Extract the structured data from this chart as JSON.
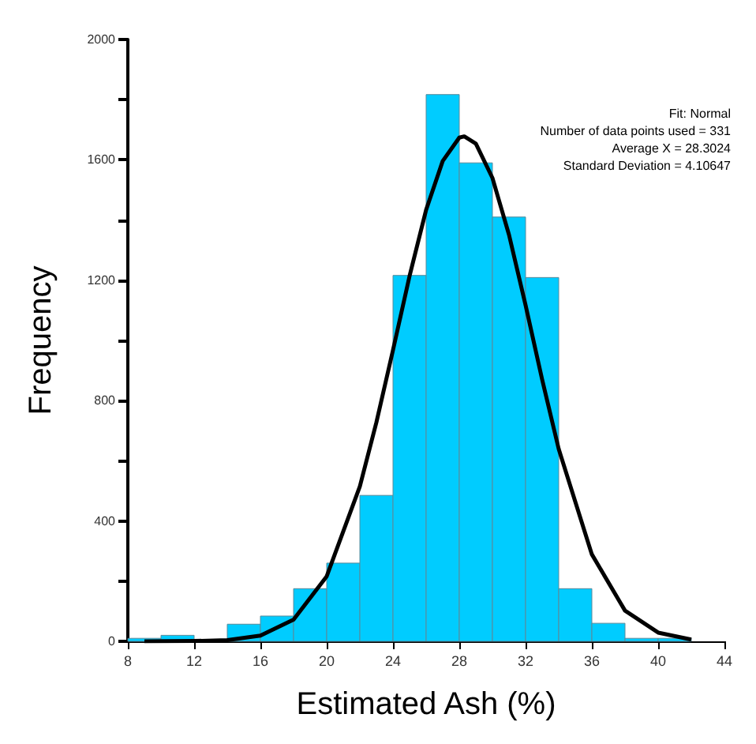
{
  "chart_data": {
    "type": "histogram",
    "xlabel": "Estimated Ash (%)",
    "ylabel": "Frequency",
    "bins": [
      8,
      10,
      12,
      14,
      16,
      18,
      20,
      22,
      24,
      26,
      28,
      30,
      32,
      34,
      36,
      38,
      40,
      42
    ],
    "values": [
      10,
      20,
      0,
      57,
      84,
      175,
      260,
      485,
      1216,
      1817,
      1590,
      1410,
      1209,
      175,
      60,
      10,
      10
    ],
    "color": "#00ccff",
    "series": [
      {
        "type": "line",
        "color": "#000000",
        "x": [
          9,
          12,
          14,
          16,
          18,
          20,
          22,
          23,
          24,
          25,
          26,
          27,
          28,
          28.3,
          29,
          30,
          31,
          32,
          33,
          34,
          36,
          38,
          40,
          42
        ],
        "values": [
          0,
          1,
          4,
          19,
          72,
          216,
          515,
          728,
          968,
          1214,
          1434,
          1596,
          1674,
          1678,
          1654,
          1540,
          1351,
          1117,
          870,
          639,
          289,
          102,
          29,
          6
        ]
      }
    ],
    "xlim": [
      8,
      44
    ],
    "xticks": [
      8,
      12,
      16,
      20,
      24,
      28,
      32,
      36,
      40,
      44
    ],
    "ylim": [
      0,
      2000
    ],
    "yticks": [
      0,
      {
        "value": 200,
        "label": null
      },
      400,
      {
        "value": 600,
        "label": null
      },
      800,
      {
        "value": 1000,
        "label": null
      },
      1200,
      {
        "value": 1400,
        "label": null
      },
      1600,
      {
        "value": 1800,
        "label": null
      },
      2000
    ],
    "grid": false,
    "legend": false,
    "marker": "none",
    "line_style": "solid",
    "annotations": [
      "Fit: Normal",
      "Number of data points used = 331",
      "Average X = 28.3024",
      "Standard Deviation = 4.10647"
    ]
  }
}
